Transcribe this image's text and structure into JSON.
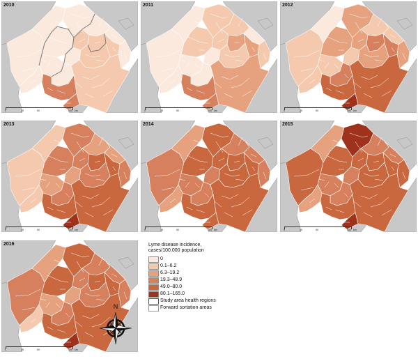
{
  "colors": {
    "bg_land": "#c8c8c8",
    "bg_border": "#8f8f8f",
    "water": "#ffffff",
    "bin0": "#fbe9dd",
    "bin1": "#f4c9ad",
    "bin2": "#e6a27e",
    "bin3": "#d7805e",
    "bin4": "#c9673f",
    "bin5": "#9e321c",
    "region_line": "#7a7a7a"
  },
  "scale": {
    "labels": [
      "0",
      "25",
      "50",
      "100"
    ],
    "unit": "km"
  },
  "panels": [
    {
      "year": "2010",
      "pattern": [
        0,
        0,
        0,
        0,
        0,
        0,
        1,
        1,
        1,
        0,
        0,
        1,
        0,
        0,
        0,
        1,
        3,
        3
      ]
    },
    {
      "year": "2011",
      "pattern": [
        0,
        0,
        1,
        1,
        1,
        0,
        1,
        2,
        2,
        1,
        0,
        1,
        0,
        0,
        0,
        2,
        3,
        3
      ]
    },
    {
      "year": "2012",
      "pattern": [
        1,
        0,
        2,
        2,
        1,
        1,
        2,
        3,
        3,
        2,
        1,
        2,
        1,
        1,
        3,
        4,
        4,
        5
      ]
    },
    {
      "year": "2013",
      "pattern": [
        1,
        1,
        3,
        3,
        2,
        2,
        3,
        4,
        4,
        3,
        2,
        3,
        2,
        1,
        3,
        4,
        4,
        5
      ]
    },
    {
      "year": "2014",
      "pattern": [
        3,
        2,
        4,
        4,
        3,
        3,
        4,
        4,
        4,
        3,
        3,
        4,
        3,
        2,
        3,
        4,
        4,
        4
      ]
    },
    {
      "year": "2015",
      "pattern": [
        4,
        2,
        4,
        5,
        3,
        3,
        4,
        4,
        4,
        4,
        3,
        4,
        3,
        2,
        3,
        4,
        4,
        5
      ]
    },
    {
      "year": "2016",
      "pattern": [
        3,
        2,
        4,
        4,
        3,
        3,
        3,
        4,
        4,
        3,
        2,
        3,
        2,
        1,
        3,
        4,
        4,
        5
      ]
    }
  ],
  "legend": {
    "title_line1": "Lyme disease incidence,",
    "title_line2": "cases/100,000 population",
    "items": [
      {
        "label": "0",
        "bin": 0
      },
      {
        "label": "0.1–6.2",
        "bin": 1
      },
      {
        "label": "6.3–19.2",
        "bin": 2
      },
      {
        "label": "19.3–48.9",
        "bin": 3
      },
      {
        "label": "49.0–80.0",
        "bin": 4
      },
      {
        "label": "80.1–165.0",
        "bin": 5
      }
    ],
    "outline_items": [
      {
        "label": "Study area health regions",
        "style": "thick"
      },
      {
        "label": "Forward sortation areas",
        "style": "thin"
      }
    ]
  },
  "compass": {
    "north_label": "N"
  }
}
